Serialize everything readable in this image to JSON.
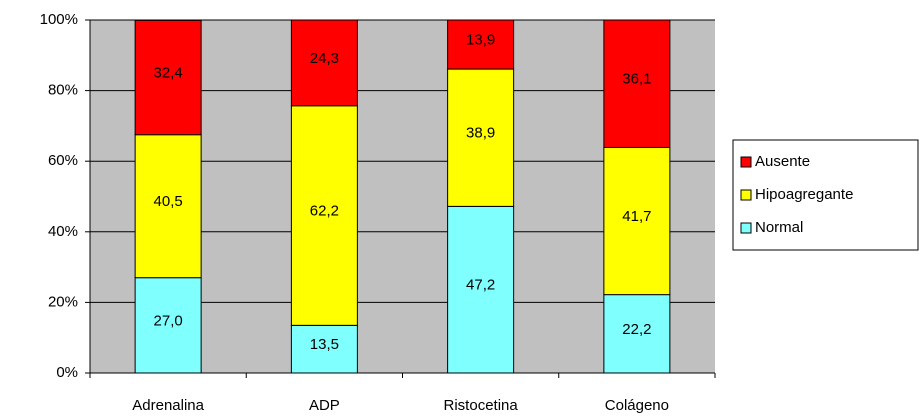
{
  "chart_data": {
    "type": "stacked_bar_100",
    "categories": [
      "Adrenalina",
      "ADP",
      "Ristocetina",
      "Colágeno"
    ],
    "series": [
      {
        "name": "Normal",
        "color": "#80ffff",
        "values": [
          27.0,
          13.5,
          47.2,
          22.2
        ],
        "value_labels": [
          "27,0",
          "13,5",
          "47,2",
          "22,2"
        ]
      },
      {
        "name": "Hipoagregante",
        "color": "#ffff00",
        "values": [
          40.5,
          62.2,
          38.9,
          41.7
        ],
        "value_labels": [
          "40,5",
          "62,2",
          "38,9",
          "41,7"
        ]
      },
      {
        "name": "Ausente",
        "color": "#ff0000",
        "values": [
          32.4,
          24.3,
          13.9,
          36.1
        ],
        "value_labels": [
          "32,4",
          "24,3",
          "13,9",
          "36,1"
        ]
      }
    ],
    "ylim": [
      0,
      100
    ],
    "yticks": [
      {
        "value": 0,
        "label": "0%"
      },
      {
        "value": 20,
        "label": "20%"
      },
      {
        "value": 40,
        "label": "40%"
      },
      {
        "value": 60,
        "label": "60%"
      },
      {
        "value": 80,
        "label": "80%"
      },
      {
        "value": 100,
        "label": "100%"
      }
    ],
    "grid": true,
    "legend": "right"
  }
}
